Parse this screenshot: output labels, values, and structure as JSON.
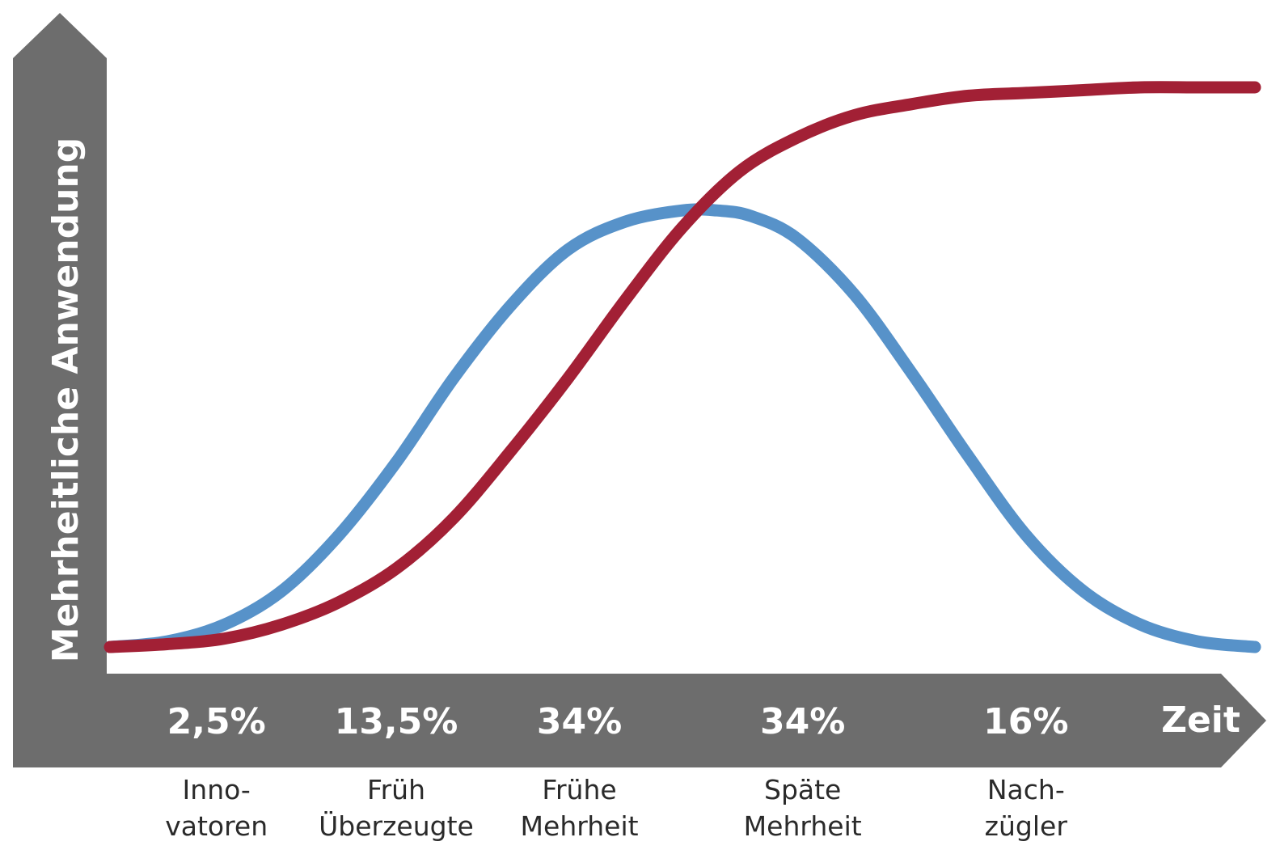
{
  "chart_data": {
    "type": "line",
    "title": "",
    "ylabel": "Mehrheitliche Anwendung",
    "xlabel": "Zeit",
    "ylim": [
      0,
      1
    ],
    "series": [
      {
        "name": "",
        "color": "#5792c9",
        "x": [
          0,
          0.05,
          0.1,
          0.15,
          0.2,
          0.25,
          0.3,
          0.35,
          0.4,
          0.45,
          0.5,
          0.53,
          0.56,
          0.6,
          0.65,
          0.7,
          0.75,
          0.8,
          0.85,
          0.9,
          0.95,
          1.0
        ],
        "y": [
          0.0,
          0.01,
          0.04,
          0.1,
          0.2,
          0.33,
          0.48,
          0.61,
          0.71,
          0.76,
          0.78,
          0.78,
          0.77,
          0.73,
          0.63,
          0.49,
          0.34,
          0.2,
          0.1,
          0.04,
          0.01,
          0.0
        ]
      },
      {
        "name": "",
        "color": "#a22035",
        "x": [
          0,
          0.05,
          0.1,
          0.15,
          0.2,
          0.25,
          0.3,
          0.35,
          0.4,
          0.45,
          0.5,
          0.55,
          0.6,
          0.65,
          0.7,
          0.75,
          0.8,
          0.85,
          0.9,
          0.95,
          1.0
        ],
        "y": [
          0.0,
          0.005,
          0.015,
          0.04,
          0.08,
          0.14,
          0.23,
          0.35,
          0.48,
          0.62,
          0.75,
          0.85,
          0.91,
          0.95,
          0.97,
          0.985,
          0.99,
          0.995,
          1.0,
          1.0,
          1.0
        ]
      }
    ],
    "segments": [
      {
        "percent": "2,5%",
        "label_lines": [
          "Inno-",
          "vatoren"
        ],
        "x_center": 0.093
      },
      {
        "percent": "13,5%",
        "label_lines": [
          "Früh",
          "Überzeugte"
        ],
        "x_center": 0.25
      },
      {
        "percent": "34%",
        "label_lines": [
          "Frühe",
          "Mehrheit"
        ],
        "x_center": 0.41
      },
      {
        "percent": "34%",
        "label_lines": [
          "Späte",
          "Mehrheit"
        ],
        "x_center": 0.605
      },
      {
        "percent": "16%",
        "label_lines": [
          "Nach-",
          "zügler"
        ],
        "x_center": 0.8
      }
    ],
    "legend": "none",
    "grid": false
  },
  "colors": {
    "axis_band": "#6d6d6d",
    "band_text": "#ffffff",
    "segment_text": "#2a2a2a",
    "background": "#ffffff"
  }
}
